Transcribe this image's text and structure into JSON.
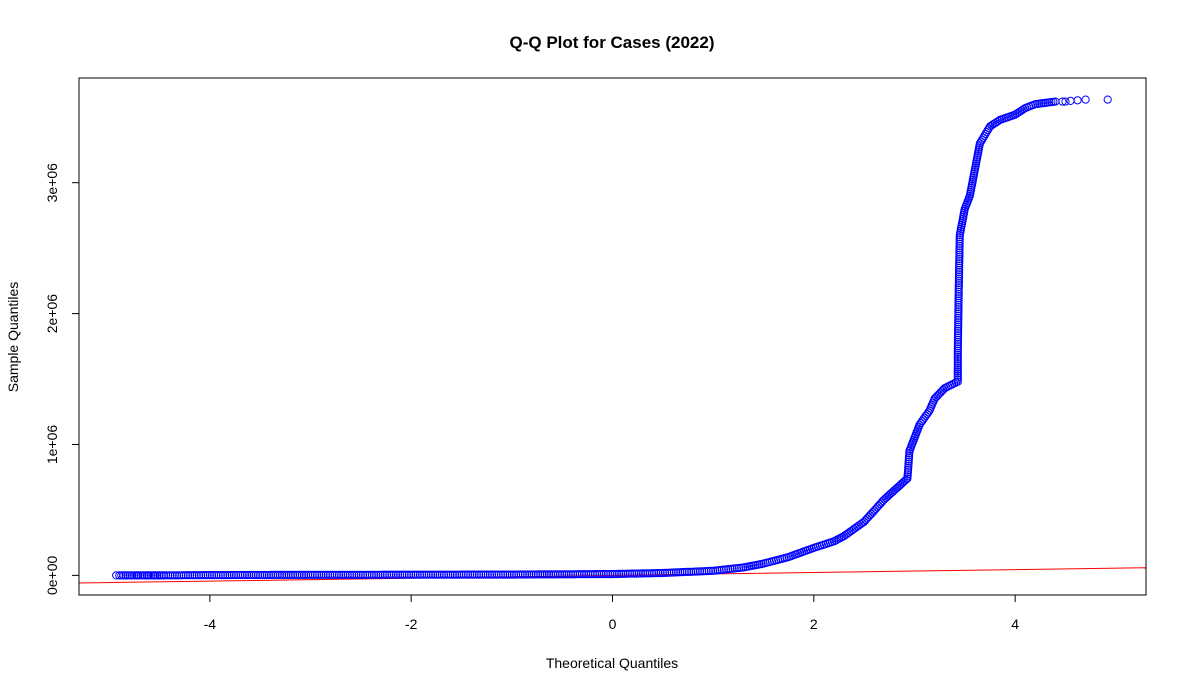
{
  "chart_data": {
    "type": "scatter",
    "title": "Q-Q Plot for Cases (2022)",
    "xlabel": "Theoretical Quantiles",
    "ylabel": "Sample Quantiles",
    "xlim": [
      -5.3,
      5.3
    ],
    "ylim": [
      -150000,
      3800000
    ],
    "x_ticks": [
      -4,
      -2,
      0,
      2,
      4
    ],
    "x_tick_labels": [
      "-4",
      "-2",
      "0",
      "2",
      "4"
    ],
    "y_ticks": [
      0,
      1000000,
      2000000,
      3000000
    ],
    "y_tick_labels": [
      "0e+00",
      "1e+06",
      "2e+06",
      "3e+06"
    ],
    "grid": false,
    "legend": "none",
    "point_color": "#0000ff",
    "line_color": "#ff0000",
    "reference_line": {
      "slope": 11000,
      "intercept": 0
    },
    "quantile_curve": [
      [
        -4.9,
        0
      ],
      [
        -4.5,
        0
      ],
      [
        -4.0,
        2000
      ],
      [
        -3.0,
        4000
      ],
      [
        -2.0,
        5000
      ],
      [
        -1.0,
        6000
      ],
      [
        0.0,
        10000
      ],
      [
        0.5,
        18000
      ],
      [
        1.0,
        35000
      ],
      [
        1.3,
        60000
      ],
      [
        1.5,
        90000
      ],
      [
        1.75,
        140000
      ],
      [
        2.0,
        210000
      ],
      [
        2.2,
        260000
      ],
      [
        2.3,
        300000
      ],
      [
        2.5,
        410000
      ],
      [
        2.7,
        580000
      ],
      [
        2.8,
        650000
      ],
      [
        2.93,
        740000
      ],
      [
        2.95,
        950000
      ],
      [
        3.0,
        1050000
      ],
      [
        3.05,
        1150000
      ],
      [
        3.15,
        1260000
      ],
      [
        3.2,
        1350000
      ],
      [
        3.3,
        1430000
      ],
      [
        3.43,
        1480000
      ],
      [
        3.43,
        1700000
      ],
      [
        3.44,
        2200000
      ],
      [
        3.45,
        2600000
      ],
      [
        3.5,
        2800000
      ],
      [
        3.55,
        2900000
      ],
      [
        3.6,
        3100000
      ],
      [
        3.65,
        3300000
      ],
      [
        3.75,
        3430000
      ],
      [
        3.85,
        3480000
      ],
      [
        4.0,
        3520000
      ],
      [
        4.1,
        3570000
      ],
      [
        4.2,
        3600000
      ],
      [
        4.3,
        3610000
      ],
      [
        4.4,
        3620000
      ]
    ],
    "tail_points": [
      [
        -4.93,
        0
      ],
      [
        -4.72,
        0
      ],
      [
        -4.62,
        0
      ],
      [
        -4.55,
        0
      ],
      [
        -4.5,
        0
      ],
      [
        -4.46,
        0
      ],
      [
        4.47,
        3620000
      ],
      [
        4.5,
        3620000
      ],
      [
        4.55,
        3625000
      ],
      [
        4.62,
        3630000
      ],
      [
        4.7,
        3635000
      ],
      [
        4.92,
        3635000
      ]
    ]
  }
}
